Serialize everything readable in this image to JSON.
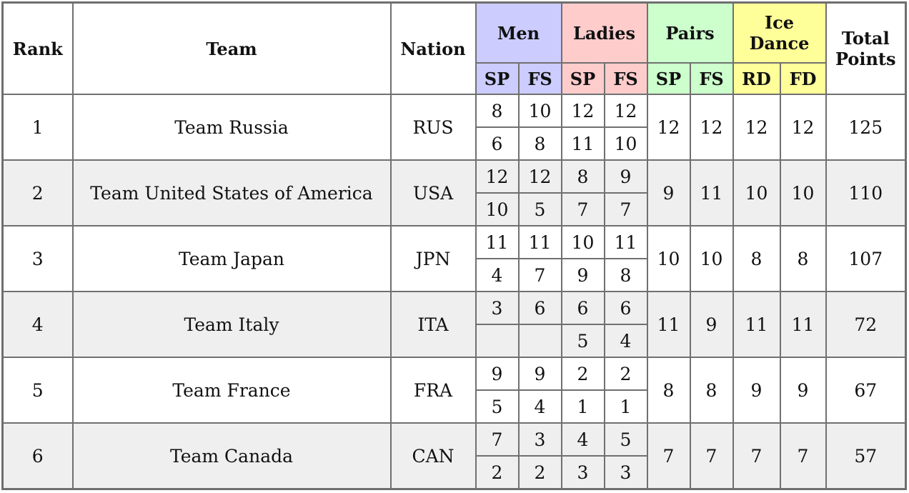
{
  "headers": {
    "rank": "Rank",
    "team": "Team",
    "nation": "Nation",
    "men": "Men",
    "ladies": "Ladies",
    "pairs": "Pairs",
    "ice_dance": "Ice Dance",
    "total": "Total Points",
    "sub": {
      "men": [
        "SP",
        "FS"
      ],
      "ladies": [
        "SP",
        "FS"
      ],
      "pairs": [
        "SP",
        "FS"
      ],
      "ice_dance": [
        "RD",
        "FD"
      ]
    }
  },
  "colors": {
    "men": "#ccccff",
    "ladies": "#ffcccc",
    "pairs": "#ccffcc",
    "ice_dance": "#ffff99",
    "shaded_row": "#efefef"
  },
  "rows": [
    {
      "rank": "1",
      "team": "Team Russia",
      "nation": "RUS",
      "men": [
        [
          "8",
          "10"
        ],
        [
          "6",
          "8"
        ]
      ],
      "ladies": [
        [
          "12",
          "12"
        ],
        [
          "11",
          "10"
        ]
      ],
      "pairs": [
        "12",
        "12"
      ],
      "ice_dance": [
        "12",
        "12"
      ],
      "total": "125"
    },
    {
      "rank": "2",
      "team": "Team United States of America",
      "nation": "USA",
      "men": [
        [
          "12",
          "12"
        ],
        [
          "10",
          "5"
        ]
      ],
      "ladies": [
        [
          "8",
          "9"
        ],
        [
          "7",
          "7"
        ]
      ],
      "pairs": [
        "9",
        "11"
      ],
      "ice_dance": [
        "10",
        "10"
      ],
      "total": "110"
    },
    {
      "rank": "3",
      "team": "Team Japan",
      "nation": "JPN",
      "men": [
        [
          "11",
          "11"
        ],
        [
          "4",
          "7"
        ]
      ],
      "ladies": [
        [
          "10",
          "11"
        ],
        [
          "9",
          "8"
        ]
      ],
      "pairs": [
        "10",
        "10"
      ],
      "ice_dance": [
        "8",
        "8"
      ],
      "total": "107"
    },
    {
      "rank": "4",
      "team": "Team Italy",
      "nation": "ITA",
      "men": [
        [
          "3",
          "6"
        ],
        [
          "",
          ""
        ]
      ],
      "ladies": [
        [
          "6",
          "6"
        ],
        [
          "5",
          "4"
        ]
      ],
      "pairs": [
        "11",
        "9"
      ],
      "ice_dance": [
        "11",
        "11"
      ],
      "total": "72"
    },
    {
      "rank": "5",
      "team": "Team France",
      "nation": "FRA",
      "men": [
        [
          "9",
          "9"
        ],
        [
          "5",
          "4"
        ]
      ],
      "ladies": [
        [
          "2",
          "2"
        ],
        [
          "1",
          "1"
        ]
      ],
      "pairs": [
        "8",
        "8"
      ],
      "ice_dance": [
        "9",
        "9"
      ],
      "total": "67"
    },
    {
      "rank": "6",
      "team": "Team Canada",
      "nation": "CAN",
      "men": [
        [
          "7",
          "3"
        ],
        [
          "2",
          "2"
        ]
      ],
      "ladies": [
        [
          "4",
          "5"
        ],
        [
          "3",
          "3"
        ]
      ],
      "pairs": [
        "7",
        "7"
      ],
      "ice_dance": [
        "7",
        "7"
      ],
      "total": "57"
    }
  ]
}
